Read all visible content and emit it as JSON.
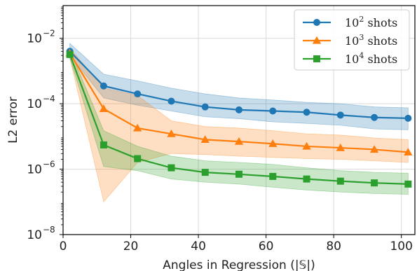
{
  "chart_data": {
    "type": "line",
    "xlabel": "Angles in Regression (|𝕊|)",
    "ylabel": "L2 error",
    "xlim": [
      0,
      104
    ],
    "ylim_log10": [
      -8,
      -1
    ],
    "y_scale": "log",
    "grid": true,
    "legend_position": "top-right",
    "x": [
      2,
      12,
      22,
      32,
      42,
      52,
      62,
      72,
      82,
      92,
      102
    ],
    "x_ticks": [
      0,
      20,
      40,
      60,
      80,
      100
    ],
    "x_tick_labels": [
      "0",
      "20",
      "40",
      "60",
      "80",
      "100"
    ],
    "y_ticks_log10": [
      -8,
      -6,
      -4,
      -2
    ],
    "series": [
      {
        "name": "10^2 shots",
        "legend_base": "10",
        "legend_exp": "2",
        "legend_suffix": " shots",
        "color": "#1f77b4",
        "marker": "circle",
        "values": [
          0.004,
          0.00035,
          0.0002,
          0.00012,
          8e-05,
          6.5e-05,
          6e-05,
          5.5e-05,
          4.5e-05,
          3.8e-05,
          3.6e-05
        ],
        "lower": [
          0.003,
          0.00015,
          9e-05,
          6e-05,
          4e-05,
          3.5e-05,
          2.8e-05,
          2.5e-05,
          2.2e-05,
          1.7e-05,
          1.6e-05
        ],
        "upper": [
          0.007,
          0.0008,
          0.0005,
          0.0003,
          0.0002,
          0.00015,
          0.00013,
          0.00011,
          0.0001,
          8e-05,
          7.5e-05
        ]
      },
      {
        "name": "10^3 shots",
        "legend_base": "10",
        "legend_exp": "3",
        "legend_suffix": " shots",
        "color": "#ff7f0e",
        "marker": "triangle",
        "values": [
          0.0035,
          7e-05,
          1.8e-05,
          1.2e-05,
          8e-06,
          7e-06,
          6e-06,
          5e-06,
          4.5e-06,
          4e-06,
          3.3e-06
        ],
        "lower": [
          0.0025,
          1e-07,
          1.6e-06,
          3e-06,
          2.8e-06,
          2.5e-06,
          2.3e-06,
          2.1e-06,
          2e-06,
          1.8e-06,
          1.6e-06
        ],
        "upper": [
          0.005,
          0.0003,
          0.00018,
          3e-05,
          2e-05,
          1.8e-05,
          1.5e-05,
          1.2e-05,
          1.1e-05,
          9e-06,
          8e-06
        ]
      },
      {
        "name": "10^4 shots",
        "legend_base": "10",
        "legend_exp": "4",
        "legend_suffix": " shots",
        "color": "#2ca02c",
        "marker": "square",
        "values": [
          0.0032,
          5.5e-06,
          2.1e-06,
          1.1e-06,
          8e-07,
          7e-07,
          6e-07,
          5e-07,
          4.3e-07,
          3.8e-07,
          3.5e-07
        ],
        "lower": [
          0.0025,
          1.2e-06,
          9e-07,
          5e-07,
          4e-07,
          3.5e-07,
          2.8e-07,
          2.3e-07,
          2e-07,
          1.8e-07,
          1.7e-07
        ],
        "upper": [
          0.0045,
          1.5e-05,
          5e-06,
          2.5e-06,
          1.8e-06,
          1.6e-06,
          1.4e-06,
          1.1e-06,
          9e-07,
          8e-07,
          7.5e-07
        ]
      }
    ]
  }
}
